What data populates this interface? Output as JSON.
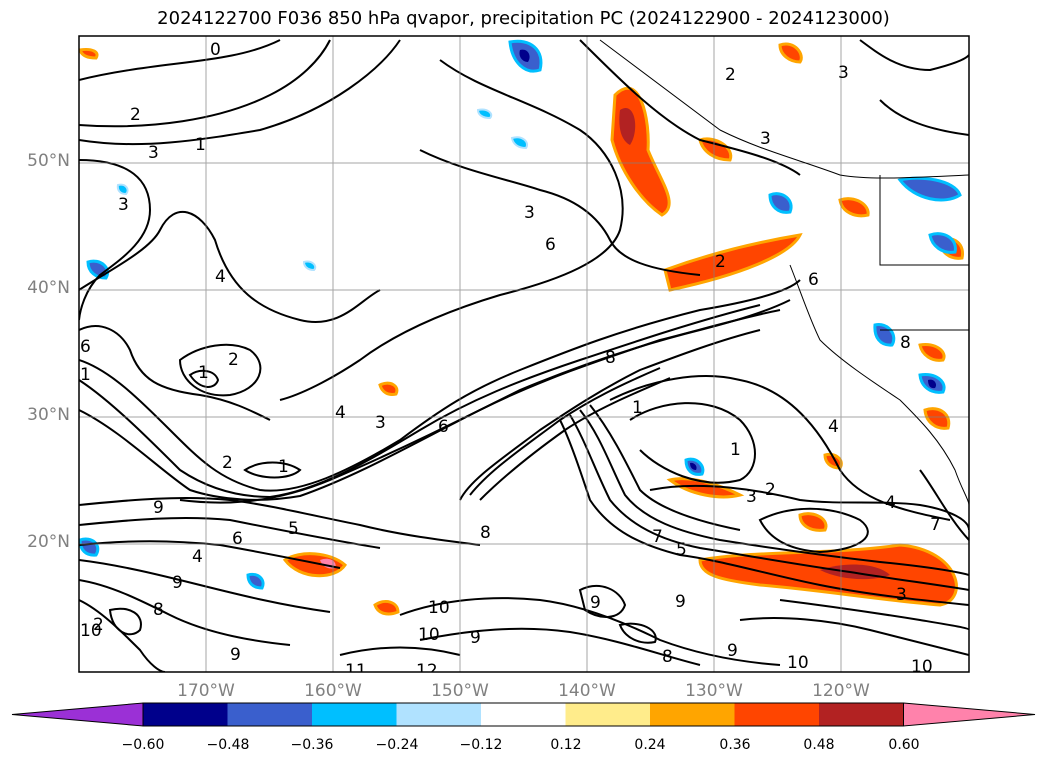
{
  "title": "2024122700 F036 850 hPa qvapor, precipitation PC (2024122900 - 2024123000)",
  "lat_labels": [
    "50°N",
    "40°N",
    "30°N",
    "20°N"
  ],
  "lon_labels": [
    "170°W",
    "160°W",
    "150°W",
    "140°W",
    "130°W",
    "120°W"
  ],
  "colorbar": {
    "ticks": [
      "−0.60",
      "−0.48",
      "−0.36",
      "−0.24",
      "−0.12",
      "0.12",
      "0.24",
      "0.36",
      "0.48",
      "0.60"
    ],
    "colors": [
      "#9b30d6",
      "#00008b",
      "#3a5fcd",
      "#00bfff",
      "#b0e2ff",
      "#ffffff",
      "#ffec8b",
      "#ffa500",
      "#ff4500",
      "#b22222",
      "#ff82ab"
    ]
  },
  "contour_labels": [
    "0",
    "2",
    "3",
    "1",
    "3",
    "4",
    "2",
    "1",
    "6",
    "1",
    "4",
    "3",
    "6",
    "1",
    "2",
    "8",
    "9",
    "6",
    "5",
    "4",
    "9",
    "8",
    "2",
    "10",
    "10",
    "9",
    "8",
    "9",
    "12",
    "11",
    "10",
    "2",
    "3",
    "6",
    "3",
    "6",
    "8",
    "1",
    "7",
    "1",
    "4",
    "3",
    "2",
    "4",
    "7",
    "5",
    "9",
    "8",
    "9",
    "10",
    "10",
    "2",
    "3",
    "3",
    "9"
  ],
  "colors": {
    "background": "#ffffff",
    "contour": "#000000",
    "grid": "#808080",
    "axis_label": "#808080"
  }
}
